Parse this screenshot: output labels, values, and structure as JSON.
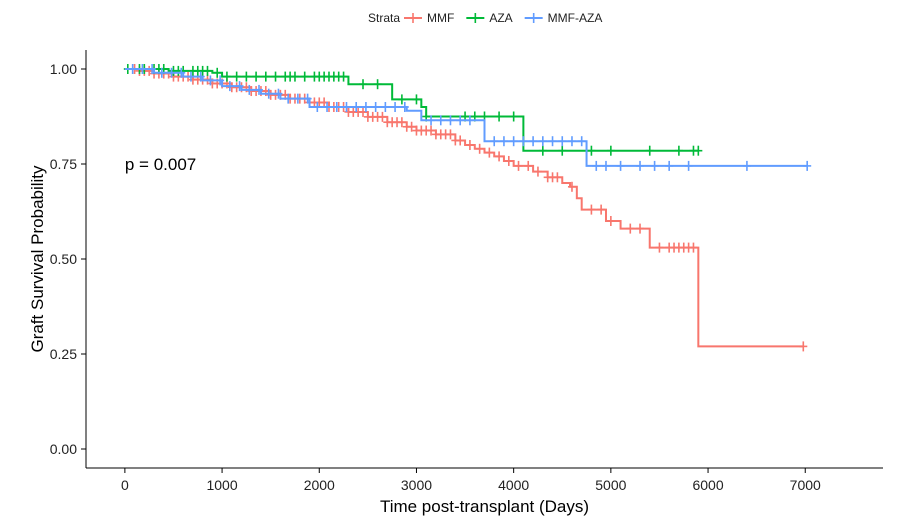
{
  "chart_data": {
    "type": "line",
    "subtype": "kaplan-meier",
    "xlabel": "Time post-transplant (Days)",
    "ylabel": "Graft Survival Probability",
    "xlim": [
      -400,
      7800
    ],
    "ylim": [
      -0.05,
      1.05
    ],
    "x_ticks": [
      0,
      1000,
      2000,
      3000,
      4000,
      5000,
      6000,
      7000
    ],
    "y_ticks": [
      0.0,
      0.25,
      0.5,
      0.75,
      1.0
    ],
    "y_tick_labels": [
      "0.00",
      "0.25",
      "0.50",
      "0.75",
      "1.00"
    ],
    "grid": false,
    "annotation": {
      "text": "p = 0.007",
      "x": 0,
      "y": 0.75
    },
    "legend": {
      "title": "Strata",
      "position": "top"
    },
    "series": [
      {
        "name": "MMF",
        "color": "#F8766D",
        "steps": [
          [
            0,
            1.0
          ],
          [
            150,
            0.995
          ],
          [
            300,
            0.988
          ],
          [
            500,
            0.98
          ],
          [
            700,
            0.972
          ],
          [
            900,
            0.962
          ],
          [
            1100,
            0.952
          ],
          [
            1300,
            0.942
          ],
          [
            1500,
            0.932
          ],
          [
            1700,
            0.922
          ],
          [
            1900,
            0.912
          ],
          [
            2100,
            0.9
          ],
          [
            2300,
            0.887
          ],
          [
            2500,
            0.874
          ],
          [
            2700,
            0.86
          ],
          [
            2900,
            0.848
          ],
          [
            3000,
            0.838
          ],
          [
            3200,
            0.828
          ],
          [
            3400,
            0.812
          ],
          [
            3500,
            0.8
          ],
          [
            3600,
            0.79
          ],
          [
            3700,
            0.78
          ],
          [
            3800,
            0.77
          ],
          [
            3900,
            0.758
          ],
          [
            4000,
            0.745
          ],
          [
            4200,
            0.73
          ],
          [
            4350,
            0.715
          ],
          [
            4500,
            0.7
          ],
          [
            4580,
            0.69
          ],
          [
            4650,
            0.66
          ],
          [
            4700,
            0.63
          ],
          [
            4950,
            0.6
          ],
          [
            5100,
            0.58
          ],
          [
            5400,
            0.53
          ],
          [
            5900,
            0.27
          ]
        ],
        "end": 6980,
        "censors": [
          100,
          150,
          200,
          250,
          300,
          350,
          400,
          450,
          500,
          550,
          600,
          650,
          700,
          750,
          800,
          850,
          900,
          950,
          1000,
          1050,
          1100,
          1150,
          1200,
          1250,
          1300,
          1350,
          1400,
          1450,
          1500,
          1550,
          1600,
          1650,
          1700,
          1750,
          1800,
          1850,
          1900,
          1950,
          2000,
          2050,
          2100,
          2150,
          2200,
          2250,
          2300,
          2350,
          2400,
          2450,
          2500,
          2550,
          2600,
          2650,
          2700,
          2750,
          2800,
          2850,
          2900,
          2950,
          3000,
          3050,
          3100,
          3150,
          3200,
          3250,
          3300,
          3350,
          3400,
          3450,
          3550,
          3650,
          3750,
          3850,
          3950,
          4050,
          4150,
          4250,
          4350,
          4400,
          4450,
          4600,
          4800,
          4900,
          5000,
          5200,
          5300,
          5500,
          5600,
          5650,
          5700,
          5750,
          5800,
          5850,
          6980
        ]
      },
      {
        "name": "AZA",
        "color": "#00BA38",
        "steps": [
          [
            0,
            1.0
          ],
          [
            450,
            0.995
          ],
          [
            900,
            0.99
          ],
          [
            1000,
            0.98
          ],
          [
            2300,
            0.96
          ],
          [
            2750,
            0.92
          ],
          [
            3050,
            0.9
          ],
          [
            3100,
            0.875
          ],
          [
            4100,
            0.785
          ]
        ],
        "end": 5900,
        "censors": [
          30,
          150,
          200,
          300,
          350,
          400,
          500,
          550,
          600,
          700,
          750,
          800,
          850,
          950,
          1050,
          1150,
          1250,
          1350,
          1450,
          1550,
          1650,
          1700,
          1750,
          1850,
          1950,
          2000,
          2050,
          2100,
          2150,
          2200,
          2250,
          2450,
          2600,
          2850,
          3000,
          3100,
          3500,
          3600,
          3700,
          3850,
          4000,
          4300,
          4500,
          4800,
          5000,
          5400,
          5700,
          5850,
          5900
        ]
      },
      {
        "name": "MMF-AZA",
        "color": "#619CFF",
        "steps": [
          [
            0,
            1.0
          ],
          [
            300,
            0.99
          ],
          [
            600,
            0.98
          ],
          [
            800,
            0.97
          ],
          [
            1000,
            0.955
          ],
          [
            1200,
            0.945
          ],
          [
            1400,
            0.935
          ],
          [
            1600,
            0.922
          ],
          [
            1900,
            0.9
          ],
          [
            2900,
            0.89
          ],
          [
            3050,
            0.865
          ],
          [
            3700,
            0.81
          ],
          [
            4750,
            0.745
          ]
        ],
        "end": 7020,
        "censors": [
          80,
          180,
          280,
          380,
          480,
          580,
          680,
          780,
          880,
          980,
          1080,
          1180,
          1280,
          1380,
          1480,
          1580,
          1680,
          1780,
          1880,
          1980,
          2080,
          2180,
          2280,
          2380,
          2480,
          2580,
          2680,
          2780,
          2880,
          3150,
          3250,
          3350,
          3450,
          3550,
          3800,
          3900,
          4000,
          4100,
          4200,
          4300,
          4400,
          4500,
          4600,
          4700,
          4850,
          4950,
          5100,
          5300,
          5450,
          5600,
          5800,
          6400,
          7020
        ]
      }
    ]
  }
}
